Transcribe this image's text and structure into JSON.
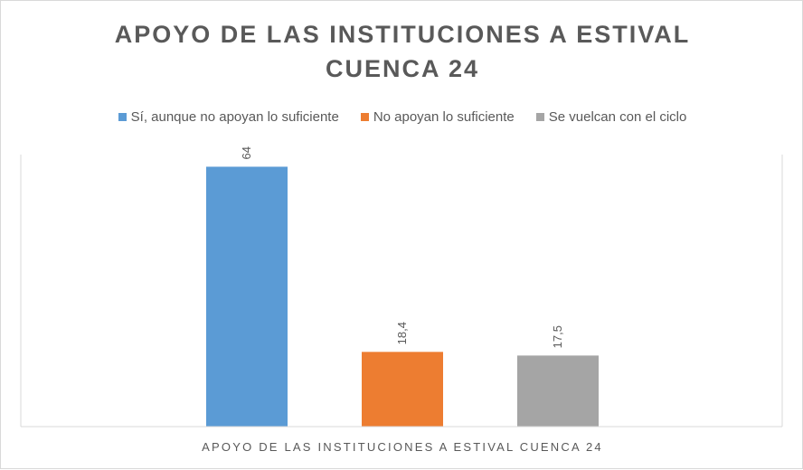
{
  "chart_data": {
    "type": "bar",
    "title_lines": [
      "APOYO DE LAS INSTITUCIONES  A ESTIVAL",
      "CUENCA  24"
    ],
    "xlabel": "APOYO DE LAS INSTITUCIONES A ESTIVAL CUENCA 24",
    "ylabel": "",
    "ylim": [
      0,
      70
    ],
    "grid": false,
    "legend_position": "top",
    "series": [
      {
        "name": "Sí, aunque no apoyan lo suficiente",
        "value": 64,
        "label": "64",
        "color": "#5b9bd5"
      },
      {
        "name": "No apoyan lo suficiente",
        "value": 18.4,
        "label": "18,4",
        "color": "#ed7d31"
      },
      {
        "name": "Se vuelcan con el ciclo",
        "value": 17.5,
        "label": "17,5",
        "color": "#a5a5a5"
      }
    ]
  }
}
